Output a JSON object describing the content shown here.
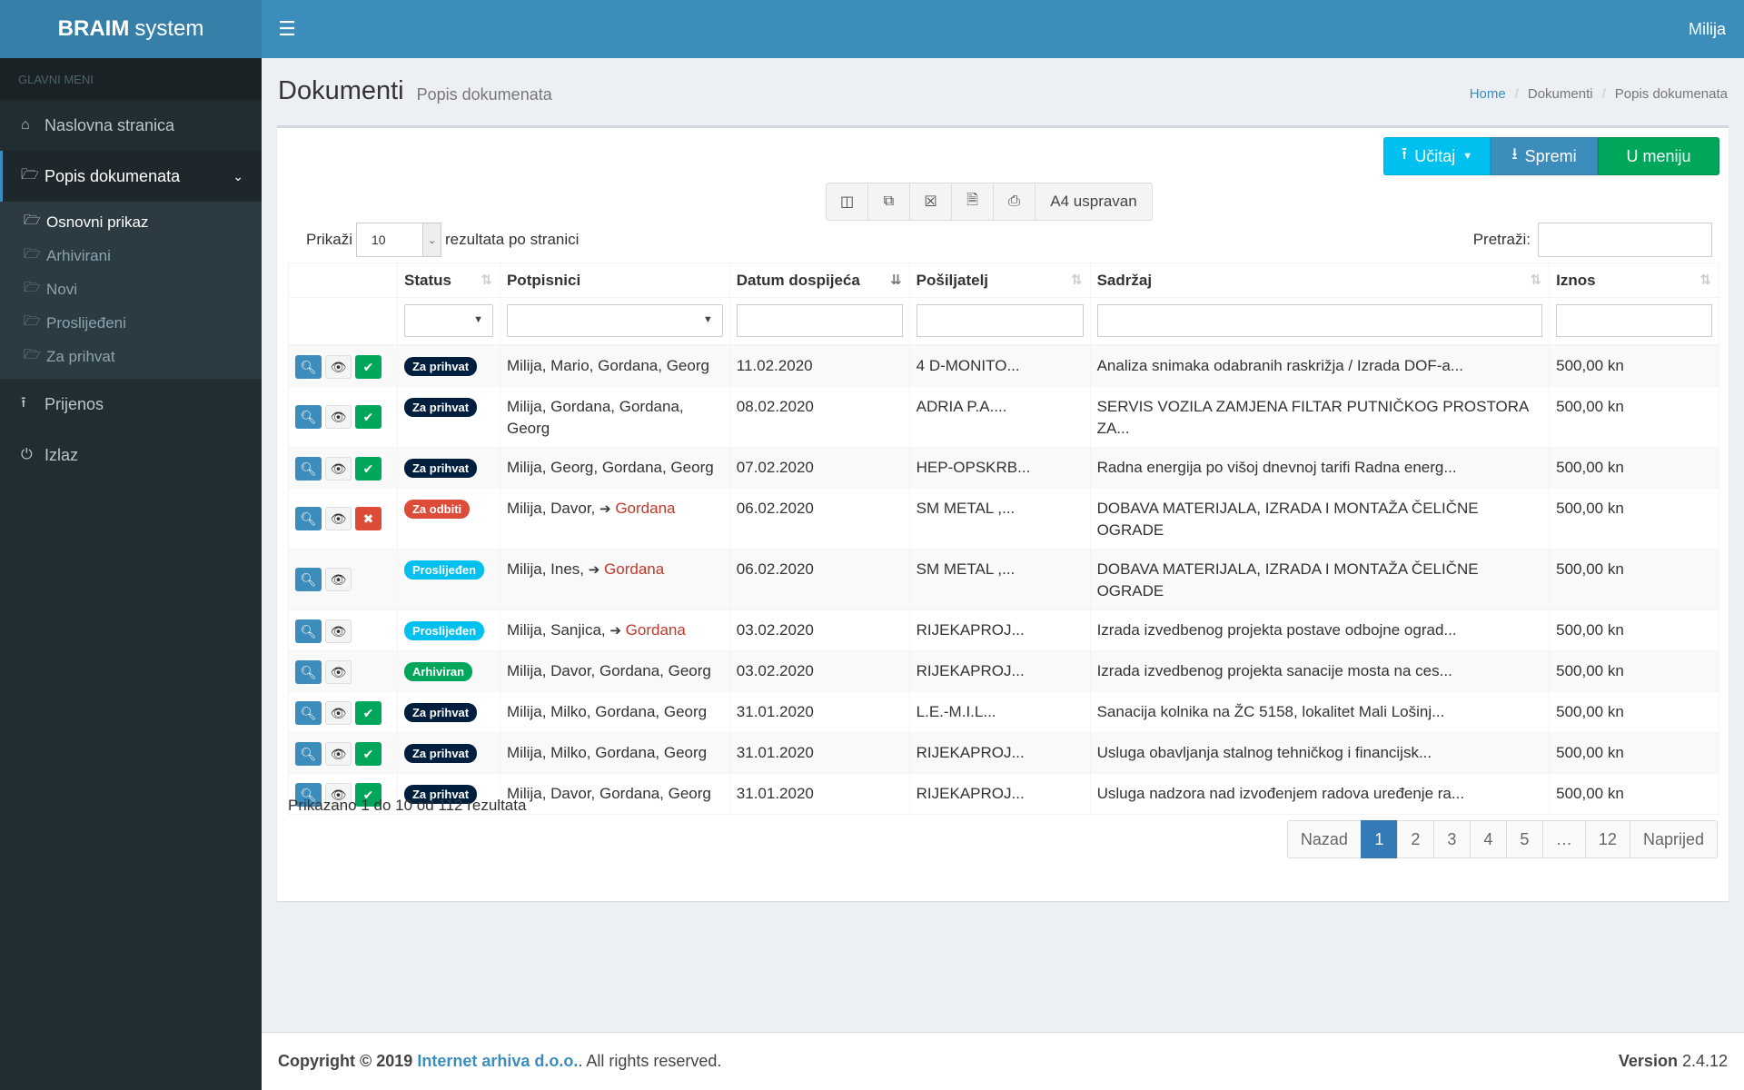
{
  "app": {
    "logo_bold": "BRAIM",
    "logo_rest": "system",
    "user": "Milija"
  },
  "sidebar": {
    "header": "GLAVNI MENI",
    "items": [
      {
        "label": "Naslovna stranica",
        "icon": "home-icon"
      },
      {
        "label": "Popis dokumenata",
        "icon": "folder-open-icon"
      },
      {
        "label": "Prijenos",
        "icon": "upload-icon"
      },
      {
        "label": "Izlaz",
        "icon": "power-icon"
      }
    ],
    "submenu": [
      {
        "label": "Osnovni prikaz"
      },
      {
        "label": "Arhivirani"
      },
      {
        "label": "Novi"
      },
      {
        "label": "Proslijeđeni"
      },
      {
        "label": "Za prihvat"
      }
    ]
  },
  "header": {
    "title": "Dokumenti",
    "subtitle": "Popis dokumenata",
    "breadcrumb": [
      "Home",
      "Dokumenti",
      "Popis dokumenata"
    ]
  },
  "toolbar": {
    "upload": "Učitaj",
    "save": "Spremi",
    "menu": "U meniju",
    "paper": "A4 uspravan"
  },
  "controls": {
    "show_label": "Prikaži",
    "page_size": "10",
    "per_page": "rezultata po stranici",
    "search_label": "Pretraži:"
  },
  "columns": {
    "status": "Status",
    "signers": "Potpisnici",
    "due": "Datum dospijeća",
    "sender": "Pošiljatelj",
    "content": "Sadržaj",
    "amount": "Iznos"
  },
  "rows": [
    {
      "status": "Za prihvat",
      "signers": "Milija, Mario, Gordana, Georg",
      "due": "11.02.2020",
      "sender": "4 D-MONITO...",
      "content": "Analiza snimaka odabranih raskrižja / Izrada DOF-a...",
      "amount": "500,00 kn"
    },
    {
      "status": "Za prihvat",
      "signers": "Milija, Gordana, Gordana, Georg",
      "due": "08.02.2020",
      "sender": "ADRIA P.A....",
      "content": "SERVIS VOZILA ZAMJENA FILTAR PUTNIČKOG PROSTORA ZA...",
      "amount": "500,00 kn"
    },
    {
      "status": "Za prihvat",
      "signers": "Milija, Georg, Gordana, Georg",
      "due": "07.02.2020",
      "sender": "HEP-OPSKRB...",
      "content": "Radna energija po višoj dnevnoj tarifi Radna energ...",
      "amount": "500,00 kn"
    },
    {
      "status": "Za odbiti",
      "signers_pre": "Milija, Davor,",
      "signers_fwd": "Gordana",
      "due": "06.02.2020",
      "sender": "SM METAL ,...",
      "content": "DOBAVA MATERIJALA, IZRADA I MONTAŽA ČELIČNE OGRADE",
      "amount": "500,00 kn"
    },
    {
      "status": "Proslijeđen",
      "signers_pre": "Milija, Ines,",
      "signers_fwd": "Gordana",
      "due": "06.02.2020",
      "sender": "SM METAL ,...",
      "content": "DOBAVA MATERIJALA, IZRADA I MONTAŽA ČELIČNE OGRADE",
      "amount": "500,00 kn"
    },
    {
      "status": "Proslijeđen",
      "signers_pre": "Milija, Sanjica,",
      "signers_fwd": "Gordana",
      "due": "03.02.2020",
      "sender": "RIJEKAPROJ...",
      "content": "Izrada izvedbenog projekta postave odbojne ograd...",
      "amount": "500,00 kn"
    },
    {
      "status": "Arhiviran",
      "signers": "Milija, Davor, Gordana, Georg",
      "due": "03.02.2020",
      "sender": "RIJEKAPROJ...",
      "content": "Izrada izvedbenog projekta sanacije mosta na ces...",
      "amount": "500,00 kn"
    },
    {
      "status": "Za prihvat",
      "signers": "Milija, Milko, Gordana, Georg",
      "due": "31.01.2020",
      "sender": "L.E.-M.I.L...",
      "content": "Sanacija kolnika na ŽC 5158, lokalitet Mali Lošinj...",
      "amount": "500,00 kn"
    },
    {
      "status": "Za prihvat",
      "signers": "Milija, Milko, Gordana, Georg",
      "due": "31.01.2020",
      "sender": "RIJEKAPROJ...",
      "content": "Usluga obavljanja stalnog tehničkog i financijsk...",
      "amount": "500,00 kn"
    },
    {
      "status": "Za prihvat",
      "signers": "Milija, Davor, Gordana, Georg",
      "due": "31.01.2020",
      "sender": "RIJEKAPROJ...",
      "content": "Usluga nadzora nad izvođenjem radova uređenje ra...",
      "amount": "500,00 kn"
    }
  ],
  "info": "Prikazano 1 do 10 od 112 rezultata",
  "pagination": {
    "prev": "Nazad",
    "pages": [
      "1",
      "2",
      "3",
      "4",
      "5",
      "…",
      "12"
    ],
    "next": "Naprijed",
    "current": "1"
  },
  "footer": {
    "copyright": "Copyright © 2019",
    "company": "Internet arhiva d.o.o.",
    "rights": ". All rights reserved.",
    "version_label": "Version",
    "version": "2.4.12"
  }
}
